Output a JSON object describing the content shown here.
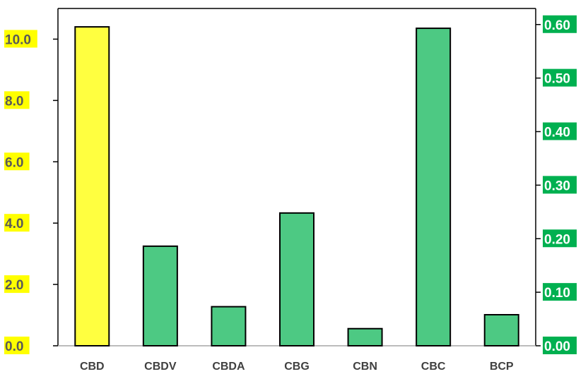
{
  "chart_data": {
    "type": "bar",
    "categories": [
      "CBD",
      "CBDV",
      "CBDA",
      "CBG",
      "CBN",
      "CBC",
      "BCP"
    ],
    "series": [
      {
        "axis": "left",
        "values": [
          10.4,
          null,
          null,
          null,
          null,
          null,
          null
        ],
        "color": "#FFFF40"
      },
      {
        "axis": "right",
        "values": [
          null,
          0.186,
          0.073,
          0.248,
          0.032,
          0.593,
          0.058
        ],
        "color": "#4DC983"
      }
    ],
    "y_left": {
      "ylim": [
        0,
        11
      ],
      "ticks": [
        "0.0",
        "2.0",
        "4.0",
        "6.0",
        "8.0",
        "10.0"
      ],
      "tick_values": [
        0,
        2,
        4,
        6,
        8,
        10
      ],
      "label_bg": "#FFFF00",
      "label_color": "#595959"
    },
    "y_right": {
      "ylim": [
        0,
        0.63
      ],
      "ticks": [
        "0.00",
        "0.10",
        "0.20",
        "0.30",
        "0.40",
        "0.50",
        "0.60"
      ],
      "tick_values": [
        0,
        0.1,
        0.2,
        0.3,
        0.4,
        0.5,
        0.6
      ],
      "label_bg": "#00B050",
      "label_color": "#FFFFFF"
    },
    "title": "",
    "xlabel": "",
    "grid": false,
    "legend": "none"
  }
}
